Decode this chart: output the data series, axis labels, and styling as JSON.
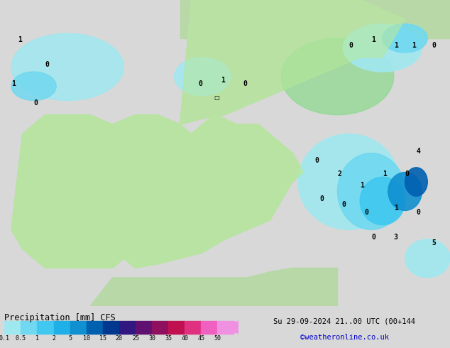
{
  "title_left": "Precipitation [mm] CFS",
  "title_right": "Su 29-09-2024 21..00 UTC (00+144",
  "credit": "©weatheronline.co.uk",
  "colorbar_levels": [
    0.1,
    0.5,
    1,
    2,
    5,
    10,
    15,
    20,
    25,
    30,
    35,
    40,
    45,
    50
  ],
  "colorbar_colors": [
    "#a0e8f0",
    "#70d8f0",
    "#40c8f0",
    "#20b0e8",
    "#1090d0",
    "#0060b0",
    "#003890",
    "#301880",
    "#601070",
    "#901060",
    "#c01050",
    "#e03080",
    "#f060c0",
    "#f090e0"
  ],
  "bg_color": "#d8d8d8",
  "map_bg": "#c8e8c0",
  "water_color": "#a0d8f0",
  "fig_width": 6.34,
  "fig_height": 4.9
}
